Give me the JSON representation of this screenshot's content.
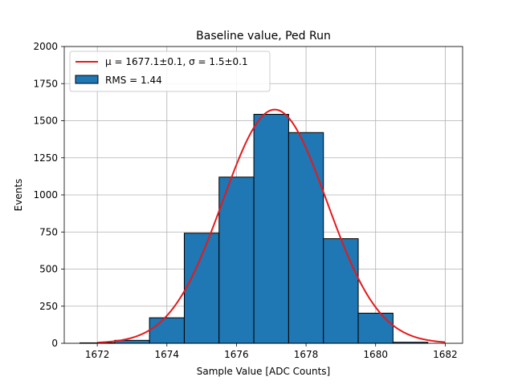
{
  "chart_data": {
    "type": "bar",
    "title": "Baseline value, Ped Run",
    "xlabel": "Sample Value [ADC Counts]",
    "ylabel": "Events",
    "xlim": [
      1671.05,
      1682.5
    ],
    "ylim": [
      0,
      2000
    ],
    "xticks": [
      1672,
      1674,
      1676,
      1678,
      1680,
      1682
    ],
    "yticks": [
      0,
      250,
      500,
      750,
      1000,
      1250,
      1500,
      1750,
      2000
    ],
    "grid": true,
    "legend_placement": "top-left",
    "legend": {
      "fit_label": "μ = 1677.1±0.1, σ = 1.5±0.1",
      "hist_label": "RMS = 1.44"
    },
    "histogram": {
      "bin_edges": [
        1671.5,
        1672.5,
        1673.5,
        1674.5,
        1675.5,
        1676.5,
        1677.5,
        1678.5,
        1679.5,
        1680.5,
        1681.5
      ],
      "counts": [
        3,
        20,
        172,
        742,
        1120,
        1543,
        1420,
        705,
        203,
        7
      ],
      "color": "#1f77b4"
    },
    "fit": {
      "type": "gaussian",
      "mu": 1677.1,
      "sigma": 1.5,
      "amplitude": 1575,
      "x_range": [
        1672,
        1682
      ],
      "color": "#e41a1c"
    }
  }
}
